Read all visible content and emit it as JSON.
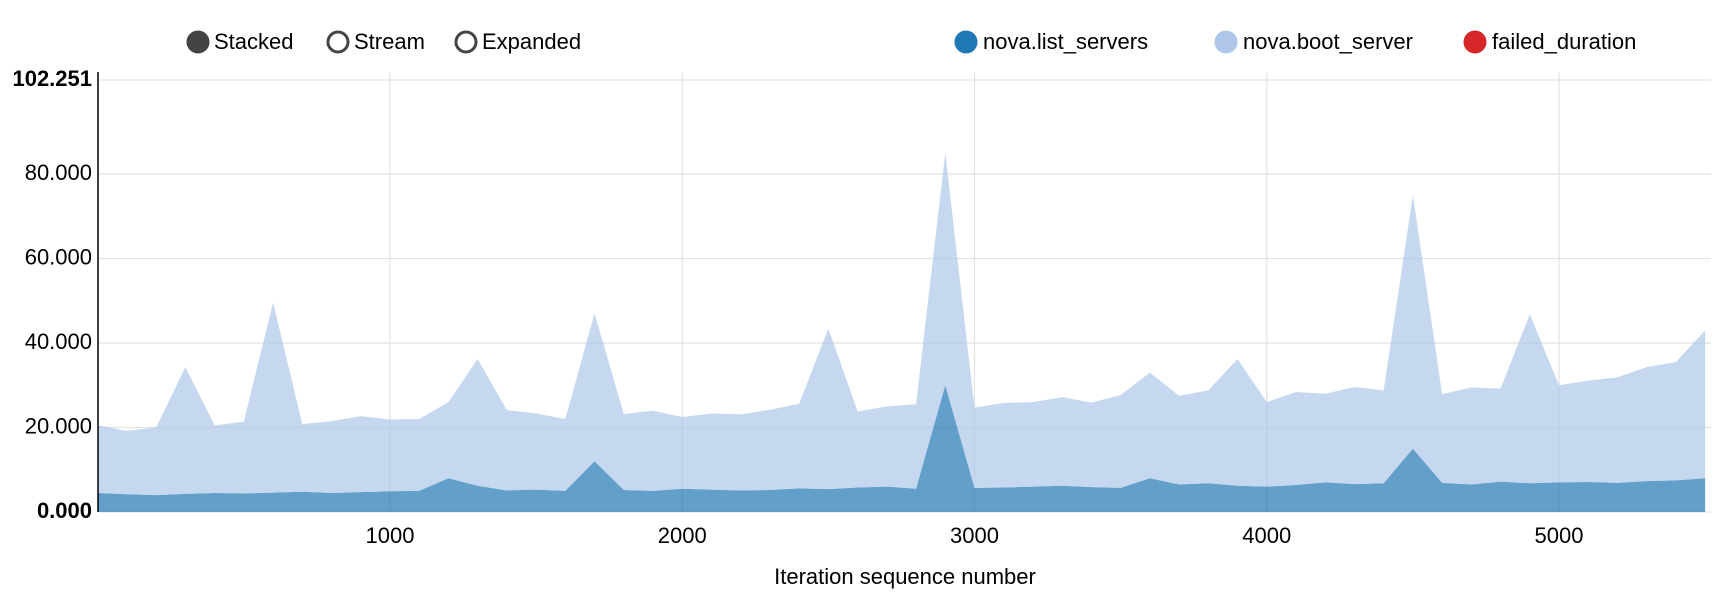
{
  "chart_data": {
    "type": "stacked-area",
    "controls": [
      "Stacked",
      "Stream",
      "Expanded"
    ],
    "active_control": 0,
    "x_label": "Iteration sequence number",
    "x": [
      1,
      100,
      200,
      300,
      400,
      500,
      600,
      700,
      800,
      900,
      1000,
      1100,
      1200,
      1300,
      1400,
      1500,
      1600,
      1700,
      1800,
      1900,
      2000,
      2100,
      2200,
      2300,
      2400,
      2500,
      2600,
      2700,
      2800,
      2900,
      3000,
      3100,
      3200,
      3300,
      3400,
      3500,
      3600,
      3700,
      3800,
      3900,
      4000,
      4100,
      4200,
      4300,
      4400,
      4500,
      4600,
      4700,
      4800,
      4900,
      5000,
      5100,
      5200,
      5300,
      5400,
      5500
    ],
    "series": [
      {
        "name": "nova.list_servers",
        "color": "#1f77b4",
        "values": [
          4.5,
          4.2,
          4.0,
          4.3,
          4.5,
          4.4,
          4.6,
          4.8,
          4.5,
          4.7,
          4.9,
          5.0,
          8.0,
          6.2,
          5.1,
          5.3,
          5.0,
          12.0,
          5.2,
          5.0,
          5.5,
          5.3,
          5.1,
          5.2,
          5.6,
          5.4,
          5.8,
          6.0,
          5.5,
          30.0,
          5.7,
          5.8,
          6.0,
          6.2,
          5.9,
          5.7,
          8.0,
          6.5,
          6.8,
          6.2,
          6.0,
          6.4,
          7.0,
          6.6,
          6.8,
          15.0,
          6.9,
          6.5,
          7.2,
          6.8,
          7.0,
          7.1,
          6.9,
          7.3,
          7.5,
          8.0
        ]
      },
      {
        "name": "nova.boot_server",
        "color": "#aec7e8",
        "values": [
          16,
          15,
          16,
          30,
          16,
          17,
          45,
          16,
          17,
          18,
          17,
          17,
          18,
          30,
          19,
          18,
          17,
          35,
          18,
          19,
          17,
          18,
          18,
          19,
          20,
          38,
          18,
          19,
          20,
          55,
          19,
          20,
          20,
          21,
          20,
          22,
          25,
          21,
          22,
          30,
          20,
          22,
          21,
          23,
          22,
          60,
          21,
          23,
          22,
          40,
          23,
          24,
          25,
          27,
          28,
          35
        ]
      },
      {
        "name": "failed_duration",
        "color": "#d62728",
        "values": [
          0,
          0,
          0,
          0,
          0,
          0,
          0,
          0,
          0,
          0,
          0,
          0,
          0,
          0,
          0,
          0,
          0,
          0,
          0,
          0,
          0,
          0,
          0,
          0,
          0,
          0,
          0,
          0,
          0,
          0,
          0,
          0,
          0,
          0,
          0,
          0,
          0,
          0,
          0,
          0,
          0,
          0,
          0,
          0,
          0,
          0,
          0,
          0,
          0,
          0,
          0,
          0,
          0,
          0,
          0,
          0
        ]
      }
    ],
    "xlim": [
      1,
      5520
    ],
    "xticks": [
      1000,
      2000,
      3000,
      4000,
      5000
    ],
    "ylim": [
      0,
      102.251
    ],
    "yticks": [
      {
        "value": 0,
        "label": "0.000"
      },
      {
        "value": 20,
        "label": "20.000"
      },
      {
        "value": 40,
        "label": "40.000"
      },
      {
        "value": 60,
        "label": "60.000"
      },
      {
        "value": 80,
        "label": "80.000"
      },
      {
        "value": 102.251,
        "label": "102.251"
      }
    ],
    "grid": true
  }
}
